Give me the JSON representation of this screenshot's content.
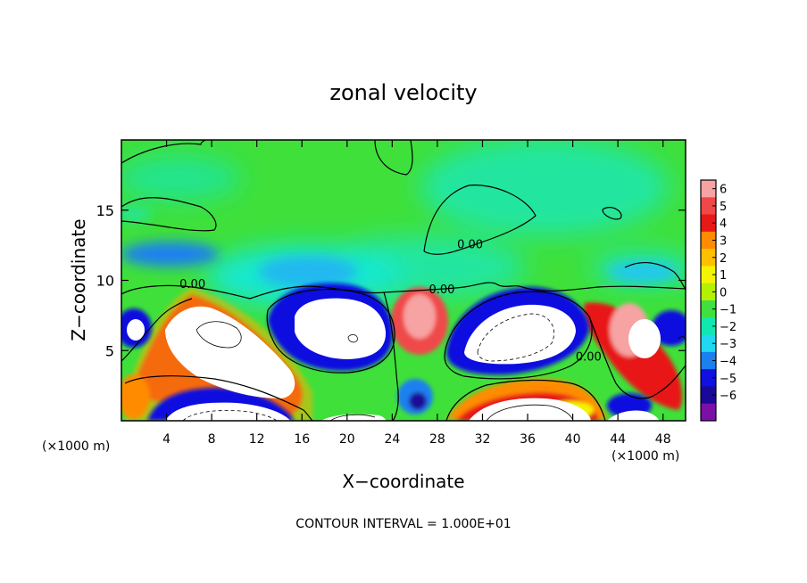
{
  "chart_data": {
    "type": "heatmap",
    "title": "zonal velocity",
    "xlabel": "X−coordinate",
    "ylabel": "Z−coordinate",
    "x_unit_left": "(×1000 m)",
    "x_unit_right": "(×1000 m)",
    "footer": "CONTOUR INTERVAL = 1.000E+01",
    "xlim": [
      0,
      50
    ],
    "ylim": [
      0,
      20
    ],
    "x_ticks": [
      {
        "value": 4,
        "label": "4"
      },
      {
        "value": 8,
        "label": "8"
      },
      {
        "value": 12,
        "label": "12"
      },
      {
        "value": 16,
        "label": "16"
      },
      {
        "value": 20,
        "label": "20"
      },
      {
        "value": 24,
        "label": "24"
      },
      {
        "value": 28,
        "label": "28"
      },
      {
        "value": 32,
        "label": "32"
      },
      {
        "value": 36,
        "label": "36"
      },
      {
        "value": 40,
        "label": "40"
      },
      {
        "value": 44,
        "label": "44"
      },
      {
        "value": 48,
        "label": "48"
      }
    ],
    "y_ticks": [
      {
        "value": 5,
        "label": "5"
      },
      {
        "value": 10,
        "label": "10"
      },
      {
        "value": 15,
        "label": "15"
      }
    ],
    "contour_labels": [
      {
        "text": "0.00",
        "x": 30.9,
        "z": 12.4
      },
      {
        "text": "0.00",
        "x": 6.3,
        "z": 9.6
      },
      {
        "text": "0.00",
        "x": 28.4,
        "z": 9.2
      },
      {
        "text": "0.00",
        "x": 41.4,
        "z": 4.4
      }
    ],
    "colorbar": {
      "levels": [
        "6",
        "5",
        "4",
        "3",
        "2",
        "1",
        "0",
        "−1",
        "−2",
        "−3",
        "−4",
        "−5",
        "−6"
      ],
      "colors": [
        "#f7a3a3",
        "#f04848",
        "#e81818",
        "#ff8c00",
        "#ffc000",
        "#f4f400",
        "#b4f000",
        "#40e040",
        "#10e8b0",
        "#20d8f0",
        "#1a80f0",
        "#1010e0",
        "#1a0898",
        "#7a10a8"
      ]
    },
    "features": [
      {
        "kind": "saturated_positive",
        "x": 7,
        "z": 5,
        "rx": 3,
        "rz": 2.2
      },
      {
        "kind": "saturated_positive",
        "x": 12,
        "z": 2.8,
        "rx": 4,
        "rz": 1.5
      },
      {
        "kind": "saturated_positive",
        "x": 20,
        "z": 7.5,
        "rx": 3,
        "rz": 2.2
      },
      {
        "kind": "saturated_positive",
        "x": 35,
        "z": 5.9,
        "rx": 5.2,
        "rz": 2.5
      },
      {
        "kind": "saturated_positive",
        "x": 45,
        "z": 6.3,
        "rx": 2.8,
        "rz": 1.8
      },
      {
        "kind": "saturated_positive",
        "x": 11,
        "z": 0.8,
        "rx": 3.4,
        "rz": 0.8
      },
      {
        "kind": "saturated_positive",
        "x": 21,
        "z": 0.4,
        "rx": 2,
        "rz": 0.5
      },
      {
        "kind": "saturated_positive",
        "x": 35,
        "z": 1.1,
        "rx": 3.5,
        "rz": 0.9
      },
      {
        "kind": "saturated_positive",
        "x": 45,
        "z": 0.5,
        "rx": 1.5,
        "rz": 0.5
      },
      {
        "kind": "saturated_positive",
        "x": 1.5,
        "z": 6.2,
        "rx": 0.8,
        "rz": 0.8
      },
      {
        "kind": "positive_band",
        "x": 7,
        "z": 4.8,
        "rx": 5,
        "rz": 3.4
      },
      {
        "kind": "positive_band",
        "x": 27.5,
        "z": 6.5,
        "rx": 2.7,
        "rz": 2.3
      },
      {
        "kind": "positive_band",
        "x": 45,
        "z": 4.7,
        "rx": 4.5,
        "rz": 3
      },
      {
        "kind": "positive_band",
        "x": 35.5,
        "z": 2.6,
        "rx": 7,
        "rz": 1.5
      },
      {
        "kind": "negative_band",
        "x": 20,
        "z": 7.6,
        "rx": 4.5,
        "rz": 3.2
      },
      {
        "kind": "negative_band",
        "x": 35,
        "z": 6,
        "rx": 7,
        "rz": 3.3
      },
      {
        "kind": "negative_band",
        "x": 11,
        "z": 1.5,
        "rx": 4.3,
        "rz": 1.2
      },
      {
        "kind": "negative_band",
        "x": 48.5,
        "z": 6.5,
        "rx": 1.8,
        "rz": 1.6
      },
      {
        "kind": "negative_band",
        "x": 1.5,
        "z": 6.5,
        "rx": 1.6,
        "rz": 1.6
      },
      {
        "kind": "negative_band",
        "x": 25.5,
        "z": 1.5,
        "rx": 1.5,
        "rz": 1.4
      },
      {
        "kind": "weak_negative",
        "x": 4,
        "z": 12,
        "rx": 5,
        "rz": 1.5
      },
      {
        "kind": "weak_negative",
        "x": 17,
        "z": 11,
        "rx": 6,
        "rz": 2.2
      },
      {
        "kind": "weak_negative",
        "x": 35,
        "z": 16,
        "rx": 8,
        "rz": 4
      },
      {
        "kind": "weak_negative",
        "x": 45,
        "z": 11,
        "rx": 4.5,
        "rz": 1.8
      }
    ]
  }
}
